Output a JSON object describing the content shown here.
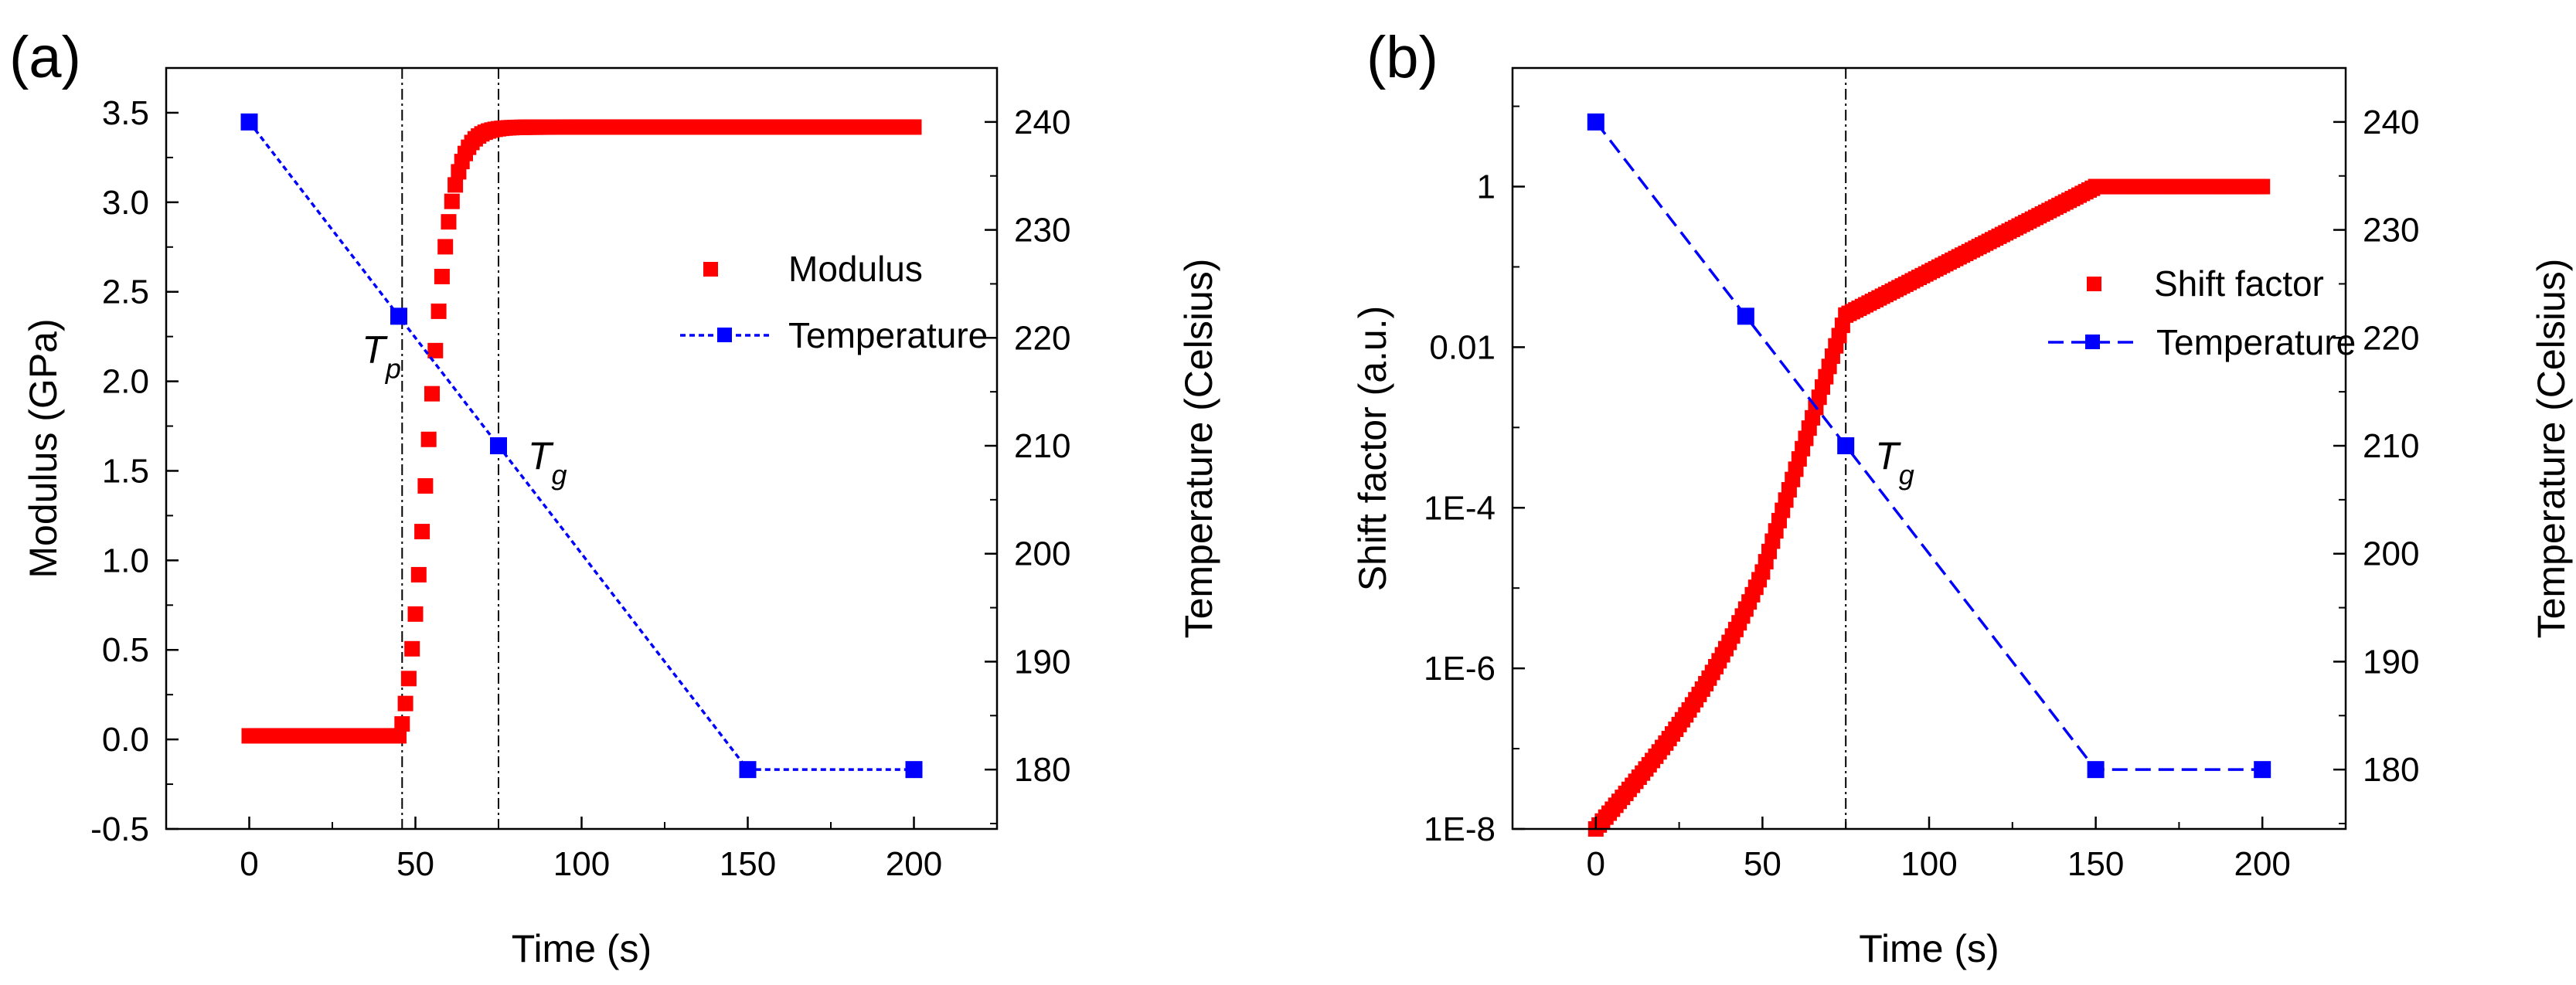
{
  "colors": {
    "modulus": "#ff0000",
    "temperature": "#0000ff",
    "axis": "#000000",
    "guide_line": "#000000"
  },
  "chart_data": [
    {
      "type": "scatter",
      "panel_label": "(a)",
      "xlabel": "Time (s)",
      "ylabel": "Modulus (GPa)",
      "y2label": "Temperature (Celsius)",
      "xlim": [
        -25,
        225
      ],
      "ylim": [
        -0.5,
        3.75
      ],
      "y2lim": [
        174.5,
        245
      ],
      "xticks": [
        "0",
        "50",
        "100",
        "150",
        "200"
      ],
      "yticks": [
        "-0.5",
        "0.0",
        "0.5",
        "1.0",
        "1.5",
        "2.0",
        "2.5",
        "3.0",
        "3.5"
      ],
      "y2ticks": [
        "180",
        "190",
        "200",
        "210",
        "220",
        "230",
        "240"
      ],
      "grid": false,
      "legend_position": "right-middle",
      "series": [
        {
          "name": "Modulus",
          "axis": "left",
          "marker": "square",
          "line": "none",
          "model": "sigmoid",
          "model_params": {
            "x_start": 0,
            "x_end": 200,
            "step": 1,
            "base": 0.02,
            "plateau": 3.42,
            "onset": 45.3,
            "midpoint": 53.5,
            "width": 3.6
          },
          "points": [
            [
              0,
              0.02
            ],
            [
              20,
              0.02
            ],
            [
              40,
              0.02
            ],
            [
              44,
              0.05
            ],
            [
              45,
              0.1
            ],
            [
              46,
              0.18
            ],
            [
              47,
              0.26
            ],
            [
              48,
              0.35
            ],
            [
              49,
              0.47
            ],
            [
              50,
              0.95
            ],
            [
              51,
              1.3
            ],
            [
              52,
              1.68
            ],
            [
              53,
              1.84
            ],
            [
              55,
              2.15
            ],
            [
              56,
              2.47
            ],
            [
              57,
              2.6
            ],
            [
              58,
              2.75
            ],
            [
              60,
              2.88
            ],
            [
              61,
              3.1
            ],
            [
              62,
              3.12
            ],
            [
              63,
              3.2
            ],
            [
              65,
              3.3
            ],
            [
              70,
              3.36
            ],
            [
              75,
              3.38
            ],
            [
              80,
              3.4
            ],
            [
              90,
              3.41
            ],
            [
              100,
              3.42
            ],
            [
              150,
              3.42
            ],
            [
              200,
              3.42
            ]
          ]
        },
        {
          "name": "Temperature",
          "axis": "right",
          "marker": "square",
          "line": "dotted",
          "x": [
            0,
            45,
            75,
            150,
            200
          ],
          "y": [
            240,
            222,
            210,
            180,
            180
          ]
        }
      ],
      "vlines": [
        46,
        75
      ],
      "annotations": [
        {
          "text": "T",
          "sub": "p",
          "x": 46,
          "y2": 222
        },
        {
          "text": "T",
          "sub": "g",
          "x": 75,
          "y2": 210
        }
      ]
    },
    {
      "type": "scatter",
      "panel_label": "(b)",
      "xlabel": "Time (s)",
      "ylabel": "Shift factor (a.u.)",
      "y2label": "Temperature (Celsius)",
      "yscale": "log",
      "xlim": [
        -25,
        225
      ],
      "ylim": [
        1e-08,
        30
      ],
      "y2lim": [
        174.5,
        245
      ],
      "xticks": [
        "0",
        "50",
        "100",
        "150",
        "200"
      ],
      "yticks": [
        "1E-8",
        "1E-6",
        "1E-4",
        "0.01",
        "1"
      ],
      "y2ticks": [
        "180",
        "190",
        "200",
        "210",
        "220",
        "230",
        "240"
      ],
      "grid": false,
      "legend_position": "right-middle",
      "series": [
        {
          "name": "Shift factor",
          "axis": "left",
          "marker": "square",
          "line": "none",
          "model": "log-piecewise",
          "model_params": {
            "x_start": 0,
            "x_end": 200,
            "step": 1,
            "points": [
              [
                0,
                -8
              ],
              [
                25,
                -6.7
              ],
              [
                50,
                -4.8
              ],
              [
                75,
                -1.6
              ],
              [
                150,
                0
              ],
              [
                200,
                0
              ]
            ]
          },
          "points": [
            [
              0,
              1e-08
            ],
            [
              25,
              2e-07
            ],
            [
              50,
              1.6e-05
            ],
            [
              75,
              0.025
            ],
            [
              100,
              0.1
            ],
            [
              125,
              0.3
            ],
            [
              150,
              1
            ],
            [
              200,
              1
            ]
          ]
        },
        {
          "name": "Temperature",
          "axis": "right",
          "marker": "square",
          "line": "dashed",
          "x": [
            0,
            45,
            75,
            150,
            200
          ],
          "y": [
            240,
            222,
            210,
            180,
            180
          ]
        }
      ],
      "vlines": [
        75
      ],
      "annotations": [
        {
          "text": "T",
          "sub": "g",
          "x": 75,
          "y2": 210
        }
      ]
    }
  ]
}
